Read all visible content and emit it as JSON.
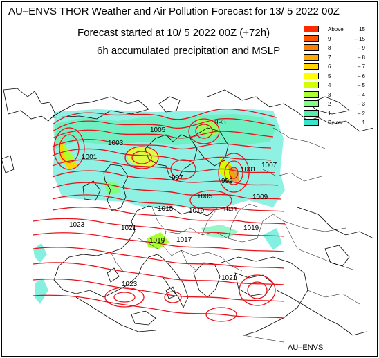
{
  "header": {
    "title": "AU–ENVS THOR Weather and Air Pollution Forecast for 13/ 5 2022  00Z",
    "forecast_start": "Forecast started at 10/ 5 2022  00Z (+72h)",
    "field": "6h accumulated precipitation and MSLP"
  },
  "credit": "AU–ENVS",
  "legend": {
    "items": [
      {
        "a": "Above",
        "b": "15",
        "color": "#ff2a00"
      },
      {
        "a": "9",
        "b": "–  15",
        "color": "#ff5500"
      },
      {
        "a": "8",
        "b": "–   9",
        "color": "#ff7f00"
      },
      {
        "a": "7",
        "b": "–   8",
        "color": "#ffaa00"
      },
      {
        "a": "6",
        "b": "–   7",
        "color": "#ffd400"
      },
      {
        "a": "5",
        "b": "–   6",
        "color": "#ffff00"
      },
      {
        "a": "4",
        "b": "–   5",
        "color": "#d4ff00"
      },
      {
        "a": "3",
        "b": "–   4",
        "color": "#aaff33"
      },
      {
        "a": "2",
        "b": "–   3",
        "color": "#7fff7f"
      },
      {
        "a": "1",
        "b": "–   2",
        "color": "#55eeaa"
      },
      {
        "a": "Below",
        "b": "1",
        "color": "#33e6cc",
        "inner": "·"
      }
    ]
  },
  "isobar_labels": [
    "1005",
    "1003",
    "1001",
    "993",
    "997",
    "1001",
    "999",
    "1007",
    "1005",
    "1009",
    "1011",
    "1015",
    "1019",
    "1023",
    "1021",
    "1019",
    "1017",
    "1019",
    "1021",
    "1023"
  ],
  "colors": {
    "isobar": "#e8121a",
    "coast": "#000000",
    "frame": "#000000"
  }
}
